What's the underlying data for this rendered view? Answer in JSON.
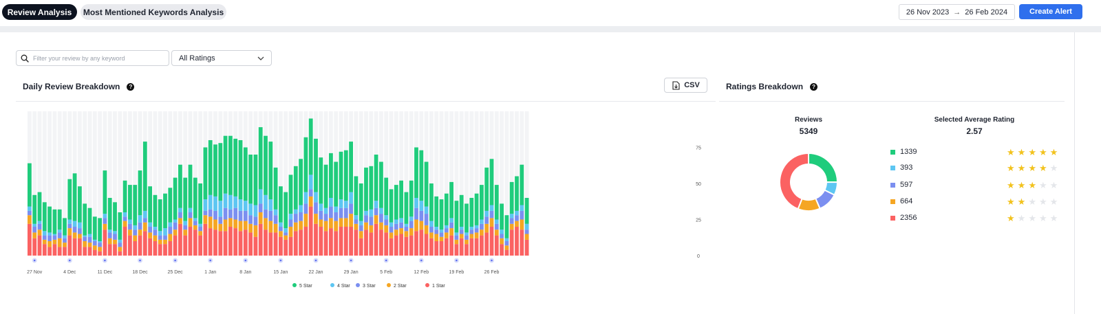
{
  "tabs": [
    {
      "label": "Review Analysis",
      "active": true
    },
    {
      "label": "Most Mentioned Keywords Analysis",
      "active": false
    }
  ],
  "date_range": {
    "start": "26 Nov 2023",
    "separator": "→",
    "end": "26 Feb 2024"
  },
  "create_alert_label": "Create Alert",
  "filters": {
    "search_placeholder": "Filter your review by any keyword",
    "rating_select": "All Ratings"
  },
  "daily": {
    "title": "Daily Review Breakdown",
    "help_icon": "question-icon",
    "csv_label": "CSV"
  },
  "ratings": {
    "title": "Ratings Breakdown",
    "reviews_label": "Reviews",
    "reviews_value": "5349",
    "avg_label": "Selected Average Rating",
    "avg_value": "2.57",
    "rows": [
      {
        "count": "1339",
        "stars": 5,
        "color": "#1fcc7c"
      },
      {
        "count": "393",
        "stars": 4,
        "color": "#5dc6f2"
      },
      {
        "count": "597",
        "stars": 3,
        "color": "#7b8ff0"
      },
      {
        "count": "664",
        "stars": 2,
        "color": "#f5a623"
      },
      {
        "count": "2356",
        "stars": 1,
        "color": "#fb6262"
      }
    ]
  },
  "chart_data": {
    "type": "bar",
    "stacked": true,
    "y_ticks": [
      "75",
      "50",
      "25",
      "0"
    ],
    "ylim": [
      0,
      100
    ],
    "x_ticks": [
      "27 Nov",
      "4 Dec",
      "11 Dec",
      "18 Dec",
      "25 Dec",
      "1 Jan",
      "8 Jan",
      "15 Jan",
      "22 Jan",
      "29 Jan",
      "5 Feb",
      "12 Feb",
      "19 Feb",
      "26 Feb"
    ],
    "legend": [
      {
        "name": "5 Star",
        "color": "#1fcc7c"
      },
      {
        "name": "4 Star",
        "color": "#5dc6f2"
      },
      {
        "name": "3 Star",
        "color": "#7b8ff0"
      },
      {
        "name": "2 Star",
        "color": "#f5a623"
      },
      {
        "name": "1 Star",
        "color": "#fb6262"
      }
    ],
    "days": [
      [
        30,
        3,
        3,
        6,
        22
      ],
      [
        20,
        2,
        4,
        4,
        12
      ],
      [
        20,
        2,
        4,
        4,
        14
      ],
      [
        20,
        3,
        3,
        3,
        8
      ],
      [
        18,
        2,
        4,
        4,
        6
      ],
      [
        17,
        1,
        3,
        3,
        8
      ],
      [
        14,
        2,
        4,
        6,
        6
      ],
      [
        12,
        2,
        3,
        3,
        6
      ],
      [
        28,
        3,
        3,
        5,
        14
      ],
      [
        33,
        4,
        4,
        4,
        12
      ],
      [
        25,
        4,
        4,
        3,
        12
      ],
      [
        22,
        1,
        3,
        4,
        6
      ],
      [
        18,
        2,
        4,
        3,
        6
      ],
      [
        16,
        1,
        3,
        3,
        4
      ],
      [
        16,
        1,
        3,
        3,
        3
      ],
      [
        30,
        3,
        4,
        4,
        18
      ],
      [
        22,
        2,
        4,
        4,
        8
      ],
      [
        20,
        2,
        4,
        3,
        8
      ],
      [
        19,
        2,
        3,
        3,
        3
      ],
      [
        22,
        3,
        3,
        4,
        20
      ],
      [
        24,
        3,
        4,
        4,
        14
      ],
      [
        28,
        3,
        4,
        4,
        10
      ],
      [
        31,
        5,
        5,
        4,
        14
      ],
      [
        48,
        5,
        3,
        6,
        17
      ],
      [
        25,
        3,
        4,
        4,
        12
      ],
      [
        22,
        2,
        4,
        4,
        10
      ],
      [
        22,
        3,
        3,
        3,
        8
      ],
      [
        24,
        5,
        3,
        3,
        8
      ],
      [
        24,
        3,
        5,
        5,
        10
      ],
      [
        29,
        2,
        5,
        4,
        14
      ],
      [
        30,
        3,
        4,
        4,
        22
      ],
      [
        30,
        3,
        3,
        4,
        14
      ],
      [
        30,
        3,
        4,
        6,
        20
      ],
      [
        28,
        2,
        3,
        3,
        18
      ],
      [
        28,
        2,
        3,
        3,
        14
      ],
      [
        36,
        8,
        3,
        6,
        22
      ],
      [
        38,
        10,
        5,
        8,
        19
      ],
      [
        36,
        10,
        6,
        7,
        18
      ],
      [
        40,
        11,
        5,
        5,
        17
      ],
      [
        40,
        10,
        8,
        8,
        17
      ],
      [
        41,
        10,
        6,
        6,
        20
      ],
      [
        40,
        8,
        8,
        6,
        19
      ],
      [
        41,
        8,
        7,
        7,
        17
      ],
      [
        37,
        7,
        7,
        6,
        18
      ],
      [
        34,
        8,
        6,
        6,
        16
      ],
      [
        35,
        8,
        6,
        8,
        13
      ],
      [
        43,
        10,
        6,
        8,
        22
      ],
      [
        41,
        10,
        6,
        8,
        18
      ],
      [
        40,
        8,
        7,
        8,
        16
      ],
      [
        29,
        4,
        6,
        6,
        16
      ],
      [
        25,
        3,
        3,
        4,
        13
      ],
      [
        25,
        3,
        2,
        3,
        11
      ],
      [
        27,
        4,
        5,
        7,
        13
      ],
      [
        30,
        3,
        6,
        6,
        17
      ],
      [
        32,
        5,
        6,
        6,
        18
      ],
      [
        38,
        8,
        7,
        9,
        20
      ],
      [
        39,
        10,
        5,
        7,
        34
      ],
      [
        37,
        7,
        8,
        7,
        22
      ],
      [
        32,
        5,
        6,
        5,
        20
      ],
      [
        30,
        4,
        5,
        7,
        17
      ],
      [
        31,
        6,
        8,
        7,
        19
      ],
      [
        31,
        4,
        6,
        7,
        17
      ],
      [
        33,
        6,
        7,
        6,
        20
      ],
      [
        35,
        5,
        7,
        6,
        20
      ],
      [
        35,
        8,
        7,
        9,
        20
      ],
      [
        27,
        3,
        3,
        4,
        18
      ],
      [
        26,
        3,
        4,
        5,
        12
      ],
      [
        30,
        3,
        5,
        5,
        18
      ],
      [
        30,
        5,
        6,
        5,
        16
      ],
      [
        32,
        5,
        5,
        6,
        22
      ],
      [
        32,
        4,
        6,
        5,
        18
      ],
      [
        26,
        3,
        4,
        5,
        16
      ],
      [
        23,
        3,
        4,
        4,
        12
      ],
      [
        24,
        3,
        4,
        4,
        14
      ],
      [
        26,
        3,
        4,
        4,
        15
      ],
      [
        22,
        2,
        3,
        4,
        13
      ],
      [
        25,
        3,
        5,
        5,
        14
      ],
      [
        35,
        7,
        8,
        8,
        17
      ],
      [
        35,
        7,
        7,
        6,
        18
      ],
      [
        31,
        5,
        8,
        6,
        15
      ],
      [
        26,
        4,
        4,
        4,
        12
      ],
      [
        21,
        2,
        3,
        5,
        10
      ],
      [
        21,
        2,
        3,
        3,
        10
      ],
      [
        22,
        2,
        3,
        4,
        12
      ],
      [
        25,
        3,
        4,
        5,
        14
      ],
      [
        22,
        2,
        3,
        3,
        8
      ],
      [
        22,
        2,
        3,
        3,
        12
      ],
      [
        20,
        2,
        3,
        3,
        8
      ],
      [
        20,
        2,
        3,
        3,
        12
      ],
      [
        22,
        2,
        3,
        4,
        12
      ],
      [
        24,
        3,
        4,
        4,
        14
      ],
      [
        30,
        4,
        5,
        6,
        16
      ],
      [
        32,
        4,
        5,
        6,
        20
      ],
      [
        24,
        3,
        4,
        4,
        14
      ],
      [
        18,
        3,
        3,
        4,
        8
      ],
      [
        16,
        2,
        3,
        3,
        4
      ],
      [
        22,
        3,
        4,
        4,
        18
      ],
      [
        24,
        3,
        4,
        4,
        20
      ],
      [
        28,
        4,
        6,
        7,
        18
      ],
      [
        18,
        4,
        3,
        4,
        11
      ]
    ]
  }
}
